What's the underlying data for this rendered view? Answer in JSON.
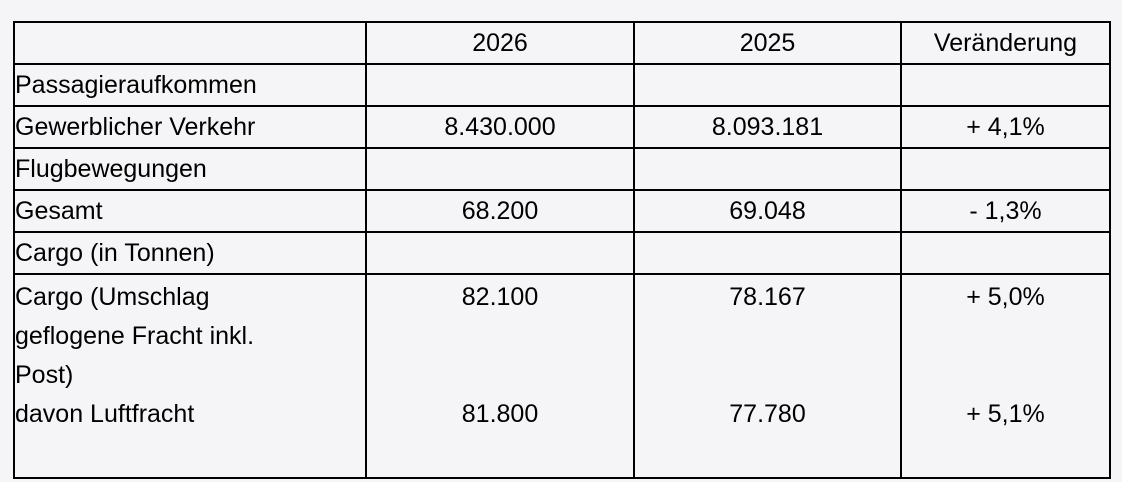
{
  "page": {
    "background_color": "#f5f5f7",
    "border_color": "#000000",
    "text_color": "#000000"
  },
  "table": {
    "header": {
      "col0": "",
      "col1": "2026",
      "col2": "2025",
      "col3": "Veränderung"
    },
    "rows": [
      {
        "label": "Passagieraufkommen",
        "v2026": "",
        "v2025": "",
        "change": ""
      },
      {
        "label": "Gewerblicher Verkehr",
        "v2026": "8.430.000",
        "v2025": "8.093.181",
        "change": "+ 4,1%"
      },
      {
        "label": "Flugbewegungen",
        "v2026": "",
        "v2025": "",
        "change": ""
      },
      {
        "label": "Gesamt",
        "v2026": "68.200",
        "v2025": "69.048",
        "change": "- 1,3%"
      },
      {
        "label": "Cargo (in Tonnen)",
        "v2026": "",
        "v2025": "",
        "change": ""
      }
    ],
    "cargo_detail_row": {
      "label_lines": [
        "Cargo (Umschlag",
        "geflogene Fracht inkl.",
        "Post)",
        "davon Luftfracht"
      ],
      "v2026_lines": [
        "82.100",
        "",
        "",
        "81.800"
      ],
      "v2025_lines": [
        "78.167",
        "",
        "",
        "77.780"
      ],
      "change_lines": [
        "+ 5,0%",
        "",
        "",
        "+ 5,1%"
      ]
    }
  }
}
